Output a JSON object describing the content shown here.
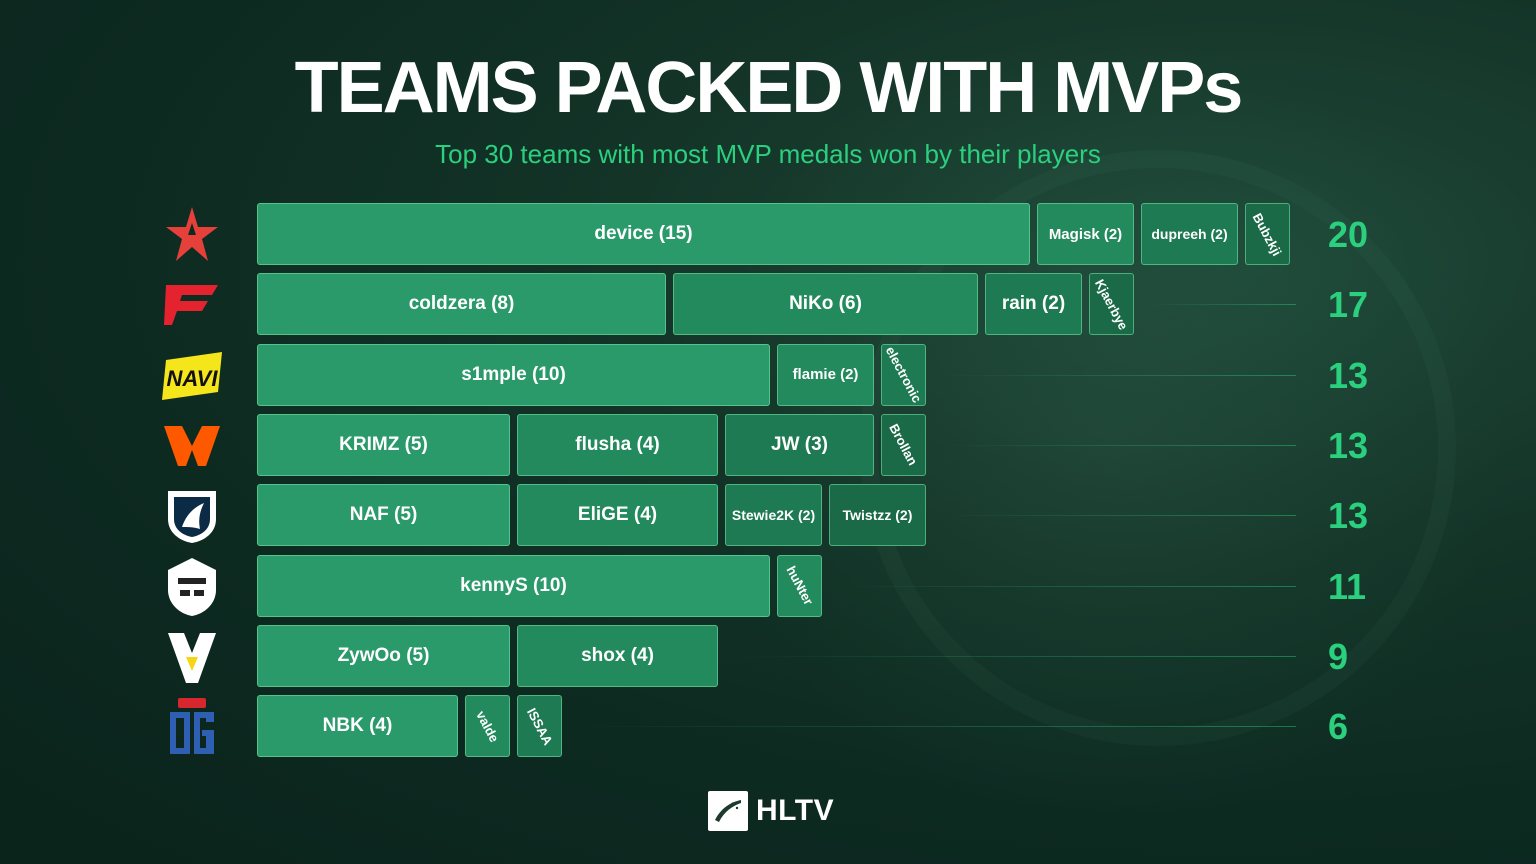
{
  "title": "TEAMS PACKED WITH MVPs",
  "subtitle": "Top 30 teams with most MVP medals won by their players",
  "brand": "HLTV",
  "colors": {
    "accent": "#2bd07f",
    "segment_shades": [
      "#2a9a6b",
      "#238a5d",
      "#1e7a52",
      "#1a6a47",
      "#155c3d"
    ]
  },
  "chart_data": {
    "type": "bar",
    "stacked": true,
    "orientation": "horizontal",
    "title": "TEAMS PACKED WITH MVPs",
    "subtitle": "Top 30 teams with most MVP medals won by their players",
    "xlim": [
      0,
      20
    ],
    "grid": false,
    "teams": [
      {
        "logo": "astralis-logo",
        "total": 20,
        "players": [
          {
            "name": "device",
            "value": 15,
            "label": "device (15)"
          },
          {
            "name": "Magisk",
            "value": 2,
            "label": "Magisk (2)"
          },
          {
            "name": "dupreeh",
            "value": 2,
            "label": "dupreeh (2)"
          },
          {
            "name": "Bubzkji",
            "value": 1,
            "label": "Bubzkji"
          }
        ]
      },
      {
        "logo": "faze-logo",
        "total": 17,
        "players": [
          {
            "name": "coldzera",
            "value": 8,
            "label": "coldzera (8)"
          },
          {
            "name": "NiKo",
            "value": 6,
            "label": "NiKo (6)"
          },
          {
            "name": "rain",
            "value": 2,
            "label": "rain (2)"
          },
          {
            "name": "Kjaerbye",
            "value": 1,
            "label": "Kjaerbye"
          }
        ]
      },
      {
        "logo": "navi-logo",
        "total": 13,
        "players": [
          {
            "name": "s1mple",
            "value": 10,
            "label": "s1mple (10)"
          },
          {
            "name": "flamie",
            "value": 2,
            "label": "flamie (2)"
          },
          {
            "name": "electronic",
            "value": 1,
            "label": "electronic"
          }
        ]
      },
      {
        "logo": "fnatic-logo",
        "total": 13,
        "players": [
          {
            "name": "KRIMZ",
            "value": 5,
            "label": "KRIMZ (5)"
          },
          {
            "name": "flusha",
            "value": 4,
            "label": "flusha (4)"
          },
          {
            "name": "JW",
            "value": 3,
            "label": "JW (3)"
          },
          {
            "name": "Brollan",
            "value": 1,
            "label": "Brollan"
          }
        ]
      },
      {
        "logo": "liquid-logo",
        "total": 13,
        "players": [
          {
            "name": "NAF",
            "value": 5,
            "label": "NAF (5)"
          },
          {
            "name": "EliGE",
            "value": 4,
            "label": "EliGE (4)"
          },
          {
            "name": "Stewie2K",
            "value": 2,
            "label": "Stewie2K (2)"
          },
          {
            "name": "Twistzz",
            "value": 2,
            "label": "Twistzz (2)"
          }
        ]
      },
      {
        "logo": "g2-logo",
        "total": 11,
        "players": [
          {
            "name": "kennyS",
            "value": 10,
            "label": "kennyS (10)"
          },
          {
            "name": "huNter",
            "value": 1,
            "label": "huNter"
          }
        ]
      },
      {
        "logo": "vitality-logo",
        "total": 9,
        "players": [
          {
            "name": "ZywOo",
            "value": 5,
            "label": "ZywOo (5)"
          },
          {
            "name": "shox",
            "value": 4,
            "label": "shox (4)"
          }
        ]
      },
      {
        "logo": "og-logo",
        "total": 6,
        "players": [
          {
            "name": "NBK",
            "value": 4,
            "label": "NBK (4)"
          },
          {
            "name": "valde",
            "value": 1,
            "label": "valde"
          },
          {
            "name": "ISSAA",
            "value": 1,
            "label": "ISSAA"
          }
        ]
      }
    ]
  }
}
